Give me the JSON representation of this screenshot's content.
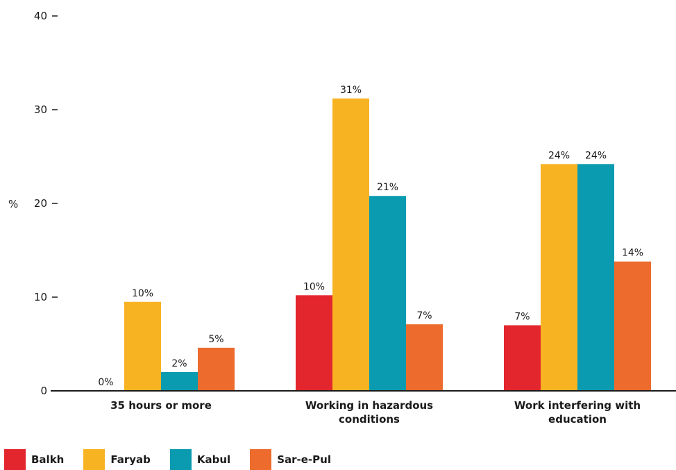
{
  "chart_data": {
    "type": "bar",
    "ylabel": "%",
    "ylim": [
      0,
      40
    ],
    "yticks": [
      0,
      10,
      20,
      30,
      40
    ],
    "categories": [
      "35 hours or more",
      "Working in hazardous conditions",
      "Work interfering with education"
    ],
    "category_lines": [
      [
        "35 hours or more"
      ],
      [
        "Working in hazardous",
        "conditions"
      ],
      [
        "Work interfering with",
        "education"
      ]
    ],
    "series": [
      {
        "name": "Balkh",
        "color": "#e3262d",
        "values": [
          0,
          10.2,
          7
        ],
        "labels": [
          "0%",
          "10%",
          "7%"
        ]
      },
      {
        "name": "Faryab",
        "color": "#f8b323",
        "values": [
          9.5,
          31.2,
          24.2
        ],
        "labels": [
          "10%",
          "31%",
          "24%"
        ]
      },
      {
        "name": "Kabul",
        "color": "#0a9bb0",
        "values": [
          2,
          20.8,
          24.2
        ],
        "labels": [
          "2%",
          "21%",
          "24%"
        ]
      },
      {
        "name": "Sar-e-Pul",
        "color": "#ec6b2d",
        "values": [
          4.6,
          7.1,
          13.8
        ],
        "labels": [
          "5%",
          "7%",
          "14%"
        ]
      }
    ],
    "legend_position": "bottom-left",
    "grid": false
  }
}
